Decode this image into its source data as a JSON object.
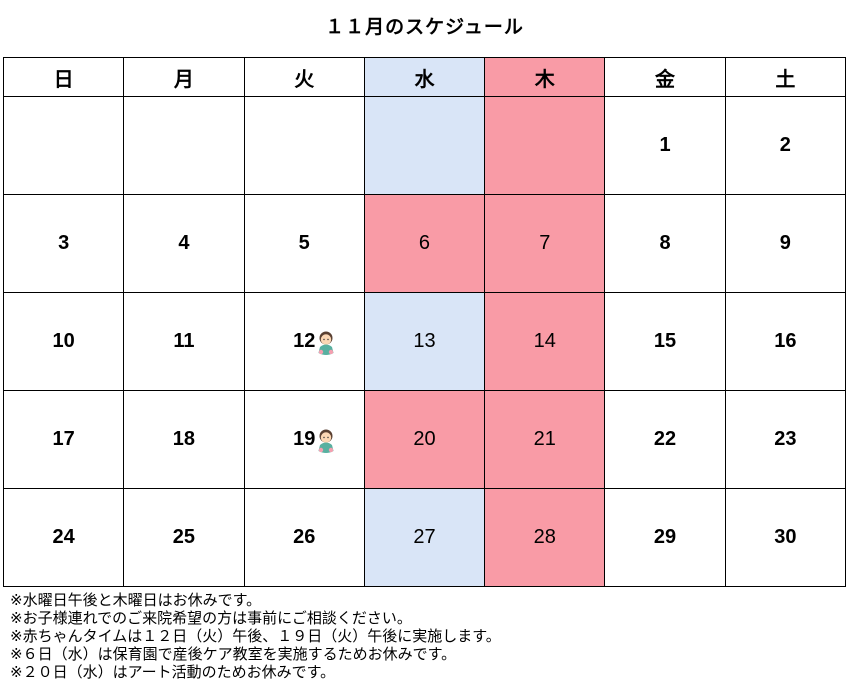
{
  "title": "１１月のスケジュール",
  "colors": {
    "wednesday_blue": "#d9e5f7",
    "thursday_pink": "#f99ba6",
    "border": "#000000",
    "text": "#000000"
  },
  "weekday_headers": [
    {
      "label": "日",
      "bg": "white"
    },
    {
      "label": "月",
      "bg": "white"
    },
    {
      "label": "火",
      "bg": "white"
    },
    {
      "label": "水",
      "bg": "blue"
    },
    {
      "label": "木",
      "bg": "pink"
    },
    {
      "label": "金",
      "bg": "white"
    },
    {
      "label": "土",
      "bg": "white"
    }
  ],
  "weeks": [
    [
      {
        "day": "",
        "bg": "white"
      },
      {
        "day": "",
        "bg": "white"
      },
      {
        "day": "",
        "bg": "white"
      },
      {
        "day": "",
        "bg": "blue"
      },
      {
        "day": "",
        "bg": "pink"
      },
      {
        "day": "1",
        "bg": "white"
      },
      {
        "day": "2",
        "bg": "white"
      }
    ],
    [
      {
        "day": "3",
        "bg": "white"
      },
      {
        "day": "4",
        "bg": "white"
      },
      {
        "day": "5",
        "bg": "white"
      },
      {
        "day": "6",
        "bg": "pink"
      },
      {
        "day": "7",
        "bg": "pink"
      },
      {
        "day": "8",
        "bg": "white"
      },
      {
        "day": "9",
        "bg": "white"
      }
    ],
    [
      {
        "day": "10",
        "bg": "white"
      },
      {
        "day": "11",
        "bg": "white"
      },
      {
        "day": "12",
        "bg": "white",
        "baby": true
      },
      {
        "day": "13",
        "bg": "blue"
      },
      {
        "day": "14",
        "bg": "pink"
      },
      {
        "day": "15",
        "bg": "white"
      },
      {
        "day": "16",
        "bg": "white"
      }
    ],
    [
      {
        "day": "17",
        "bg": "white"
      },
      {
        "day": "18",
        "bg": "white"
      },
      {
        "day": "19",
        "bg": "white",
        "baby": true
      },
      {
        "day": "20",
        "bg": "pink"
      },
      {
        "day": "21",
        "bg": "pink"
      },
      {
        "day": "22",
        "bg": "white"
      },
      {
        "day": "23",
        "bg": "white"
      }
    ],
    [
      {
        "day": "24",
        "bg": "white"
      },
      {
        "day": "25",
        "bg": "white"
      },
      {
        "day": "26",
        "bg": "white"
      },
      {
        "day": "27",
        "bg": "blue"
      },
      {
        "day": "28",
        "bg": "pink"
      },
      {
        "day": "29",
        "bg": "white"
      },
      {
        "day": "30",
        "bg": "white"
      }
    ]
  ],
  "icons": {
    "baby": "baby-icon"
  },
  "notes": [
    "※水曜日午後と木曜日はお休みです。",
    "※お子様連れでのご来院希望の方は事前にご相談ください。",
    "※赤ちゃんタイムは１２日（火）午後、１９日（火）午後に実施します。",
    "※６日（水）は保育園で産後ケア教室を実施するためお休みです。",
    "※２０日（水）はアート活動のためお休みです。"
  ]
}
